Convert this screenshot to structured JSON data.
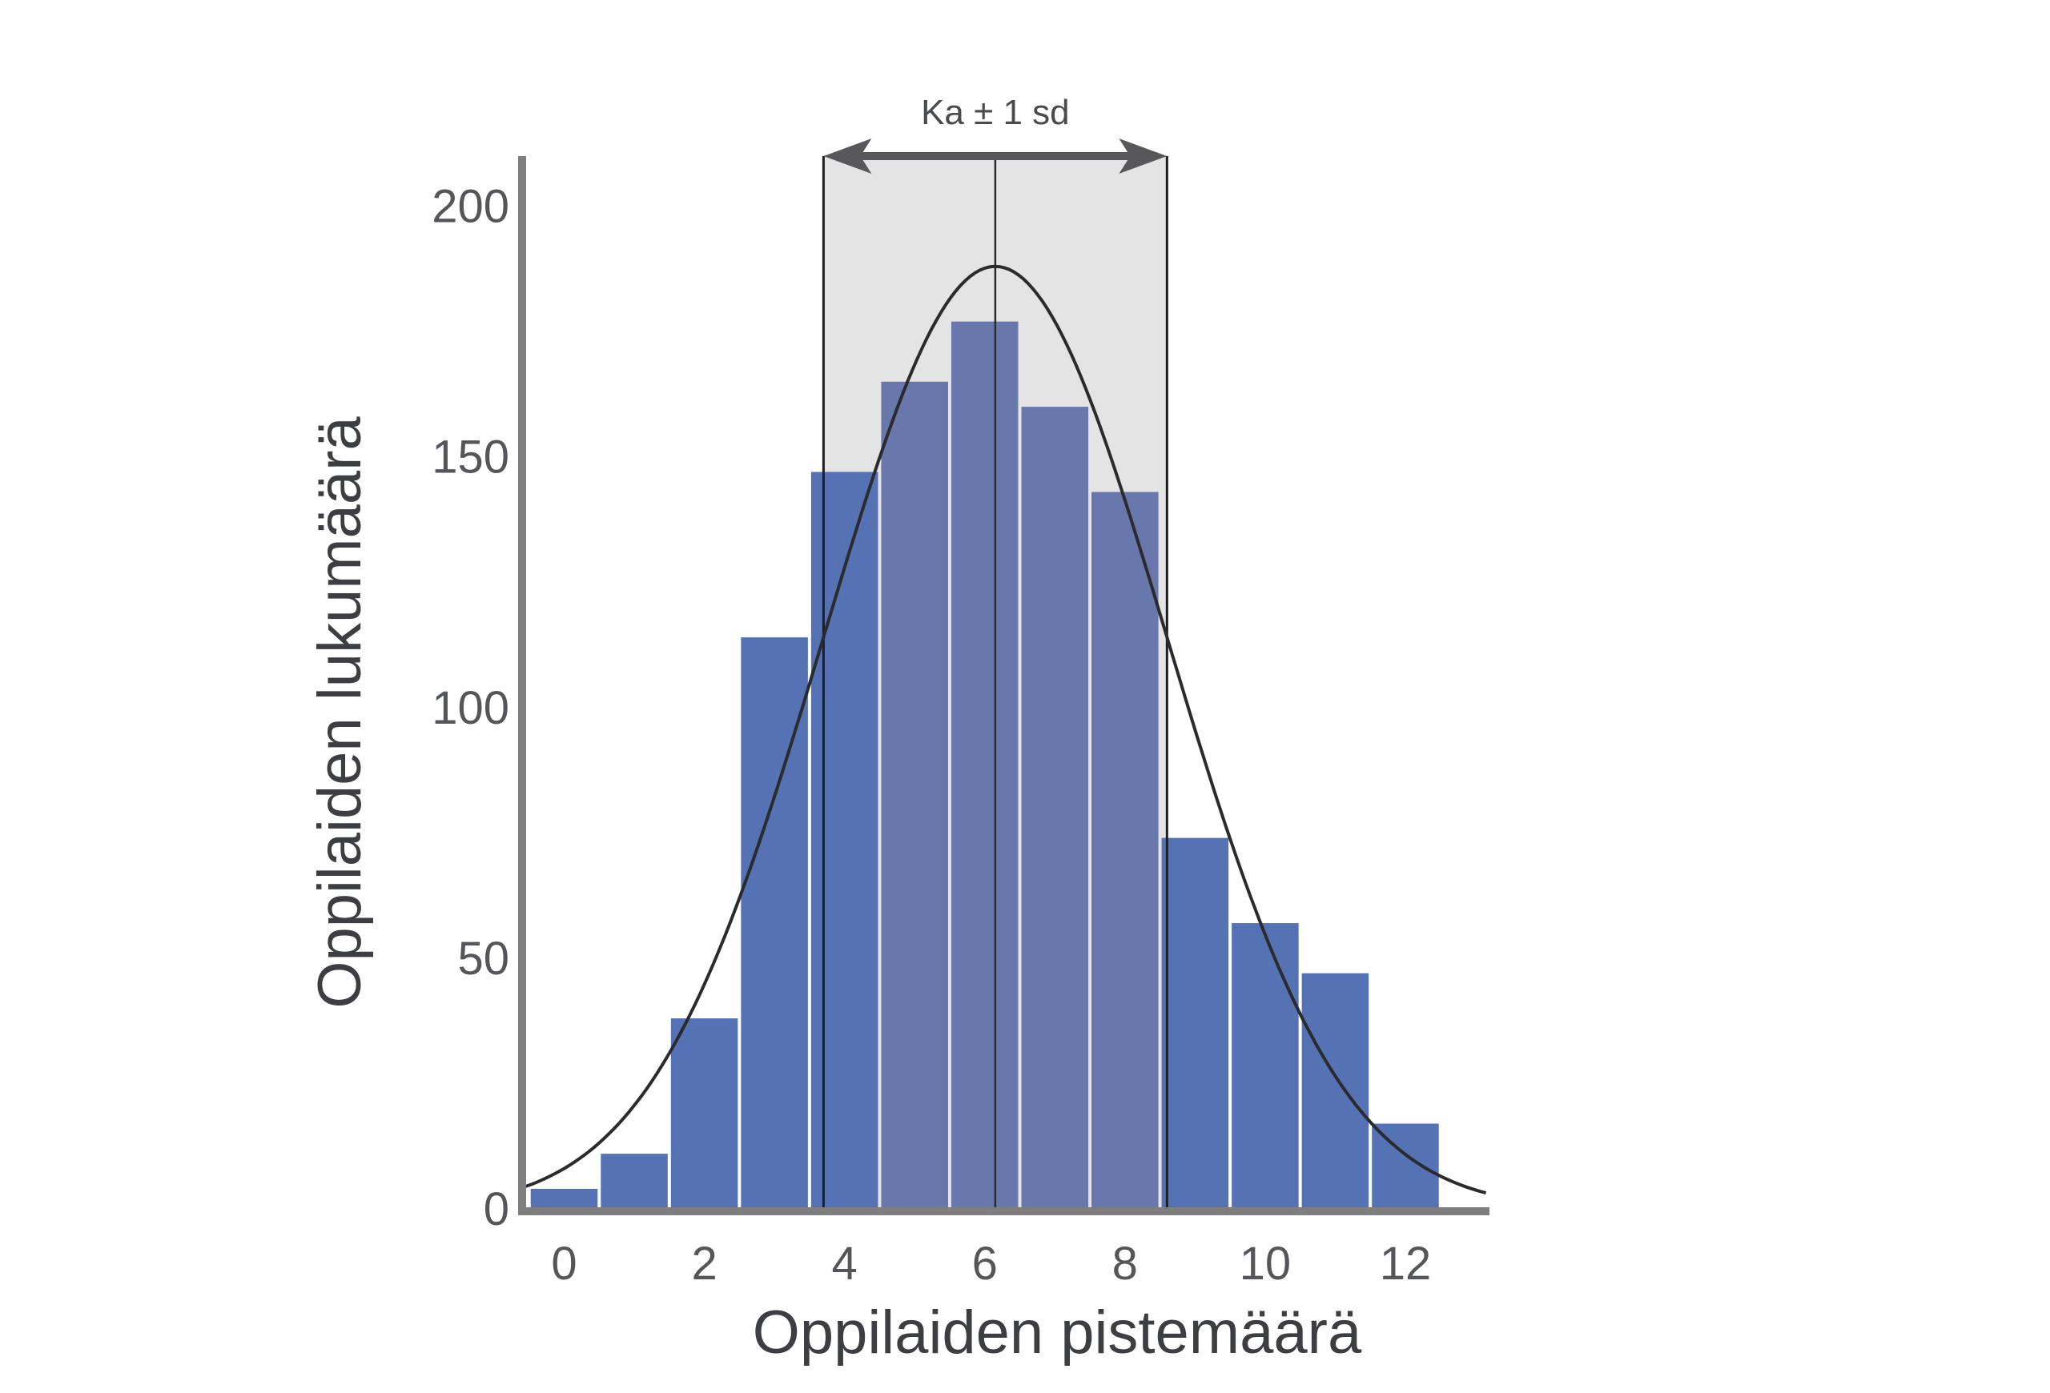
{
  "chart_data": {
    "type": "bar",
    "xlabel": "Oppilaiden pistemäärä",
    "ylabel": "Oppilaiden lukumäärä",
    "x": [
      0,
      1,
      2,
      3,
      4,
      5,
      6,
      7,
      8,
      9,
      10,
      11,
      12
    ],
    "values": [
      4,
      11,
      38,
      114,
      147,
      165,
      177,
      160,
      143,
      74,
      57,
      47,
      17
    ],
    "xticks": [
      "0",
      "2",
      "4",
      "6",
      "8",
      "10",
      "12"
    ],
    "yticks": [
      "0",
      "50",
      "100",
      "150",
      "200"
    ],
    "xlim": [
      -0.6,
      13.2
    ],
    "ylim": [
      0,
      210
    ],
    "grid": false,
    "mean": 6.15,
    "sd": 2.45,
    "curve_peak": 188,
    "band_label": "Ka ± 1 sd",
    "colors": {
      "bar": "#5572b5",
      "bar_in_band": "#6878ad",
      "band": "#e4e4e4",
      "curve": "#2b2b2e",
      "axis": "#7e7e7e",
      "arrow": "#58585b"
    }
  }
}
